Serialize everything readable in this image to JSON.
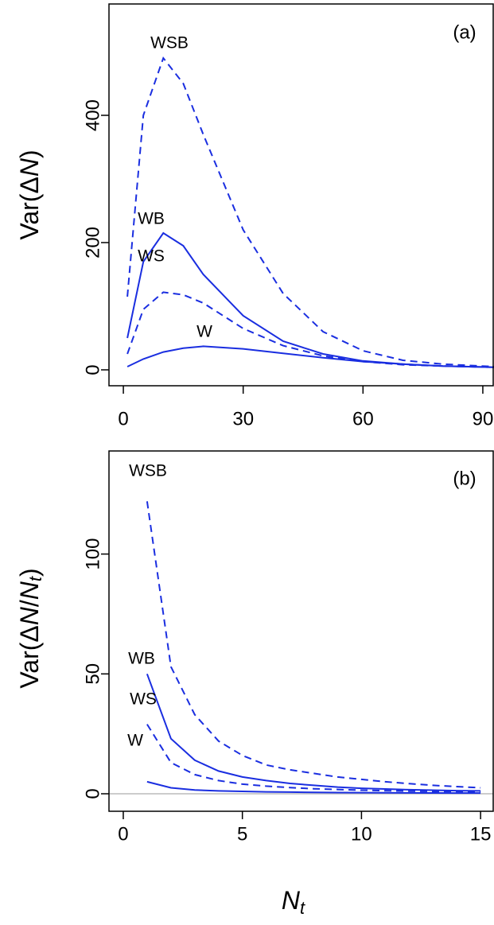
{
  "chart_data": [
    {
      "type": "line",
      "panel_label": "(a)",
      "ylabel": [
        "Var(Δ",
        "N",
        ")"
      ],
      "x": [
        1,
        5,
        10,
        15,
        20,
        30,
        40,
        50,
        60,
        70,
        80,
        93
      ],
      "series": [
        {
          "name": "WSB",
          "color": "#1a2ee0",
          "dash": true,
          "values": [
            115,
            400,
            490,
            450,
            370,
            220,
            120,
            60,
            30,
            15,
            9,
            5
          ]
        },
        {
          "name": "WB",
          "color": "#1a2ee0",
          "dash": false,
          "values": [
            50,
            170,
            215,
            195,
            150,
            85,
            45,
            25,
            14,
            9,
            6,
            4
          ]
        },
        {
          "name": "WS",
          "color": "#1a2ee0",
          "dash": true,
          "values": [
            25,
            95,
            122,
            118,
            105,
            65,
            38,
            22,
            13,
            8,
            6,
            4
          ]
        },
        {
          "name": "W",
          "color": "#1a2ee0",
          "dash": false,
          "values": [
            5,
            17,
            28,
            34,
            37,
            33,
            26,
            19,
            13,
            9,
            6,
            4
          ]
        }
      ],
      "xlim": [
        -3.6,
        92.6
      ],
      "ylim": [
        -25,
        575
      ],
      "xticks": [
        0,
        30,
        60,
        90
      ],
      "yticks": [
        0,
        200,
        400
      ]
    },
    {
      "type": "line",
      "panel_label": "(b)",
      "ylabel": [
        "Var(Δ",
        "N",
        "/",
        "N",
        "t",
        ")"
      ],
      "xlabel": [
        "N",
        "t"
      ],
      "x": [
        1,
        2,
        3,
        4,
        5,
        6,
        7,
        8,
        9,
        10,
        11,
        12,
        13,
        14,
        15
      ],
      "series": [
        {
          "name": "WSB",
          "color": "#1a2ee0",
          "dash": true,
          "values": [
            122,
            53,
            33,
            22,
            16,
            12,
            10,
            8.5,
            7,
            6,
            5,
            4.2,
            3.5,
            3,
            2.5
          ]
        },
        {
          "name": "WB",
          "color": "#1a2ee0",
          "dash": false,
          "values": [
            50,
            23,
            14,
            9.5,
            7,
            5.5,
            4.3,
            3.5,
            2.8,
            2.3,
            2,
            1.7,
            1.5,
            1.3,
            1.2
          ]
        },
        {
          "name": "WS",
          "color": "#1a2ee0",
          "dash": true,
          "values": [
            29,
            13,
            8,
            5.5,
            4,
            3.2,
            2.6,
            2.1,
            1.8,
            1.5,
            1.3,
            1.1,
            1,
            0.9,
            0.8
          ]
        },
        {
          "name": "W",
          "color": "#1a2ee0",
          "dash": false,
          "values": [
            5,
            2.5,
            1.6,
            1.2,
            1,
            0.8,
            0.7,
            0.6,
            0.5,
            0.45,
            0.4,
            0.37,
            0.34,
            0.31,
            0.29
          ]
        }
      ],
      "hline": 0,
      "hline_color": "#bbbbbb",
      "xlim": [
        -0.6,
        15.53
      ],
      "ylim": [
        -7.3,
        143
      ],
      "xticks": [
        0,
        5,
        10,
        15
      ],
      "yticks": [
        0,
        50,
        100
      ]
    }
  ]
}
